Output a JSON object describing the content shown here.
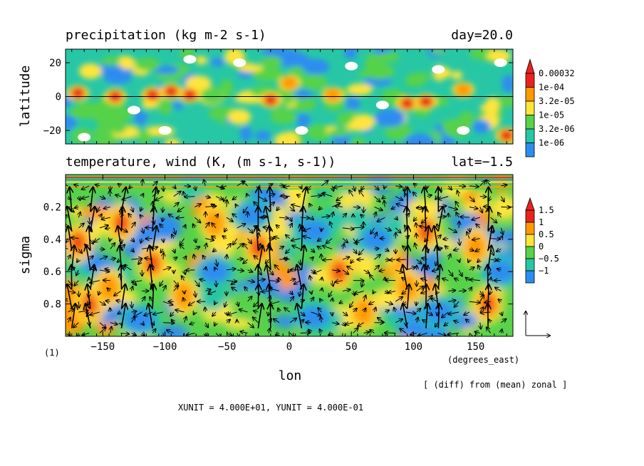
{
  "chart_data": [
    {
      "type": "heatmap",
      "title": "precipitation (kg m-2 s-1)",
      "title_right": "day=20.0",
      "xlabel": "lon",
      "ylabel": "latitude",
      "xlim": [
        -180,
        180
      ],
      "ylim": [
        -28,
        28
      ],
      "yticks": [
        20,
        0,
        -20
      ],
      "yticklabels": [
        "20",
        "0",
        "−20"
      ],
      "colorbar": {
        "labels": [
          "0.00032",
          "1e-04",
          "3.2e-05",
          "1e-05",
          "3.2e-06",
          "1e-06"
        ],
        "colors": [
          "#e8231e",
          "#ff9a00",
          "#ffe53a",
          "#57d24a",
          "#27c7a6",
          "#2d8cf0"
        ]
      },
      "blobs": [
        {
          "lon": -170,
          "lat": 2,
          "level": 5
        },
        {
          "lon": -140,
          "lat": 0,
          "level": 5
        },
        {
          "lon": -110,
          "lat": 1,
          "level": 5
        },
        {
          "lon": -95,
          "lat": 3,
          "level": 5
        },
        {
          "lon": -80,
          "lat": 1,
          "level": 5
        },
        {
          "lon": -15,
          "lat": -2,
          "level": 5
        },
        {
          "lon": 35,
          "lat": 1,
          "level": 4
        },
        {
          "lon": 95,
          "lat": -4,
          "level": 5
        },
        {
          "lon": 110,
          "lat": -3,
          "level": 5
        },
        {
          "lon": 175,
          "lat": -23,
          "level": 5
        },
        {
          "lon": -160,
          "lat": 15,
          "level": 3
        },
        {
          "lon": 0,
          "lat": 8,
          "level": 4
        },
        {
          "lon": 140,
          "lat": 4,
          "level": 4
        },
        {
          "lon": -40,
          "lat": -12,
          "level": 3
        },
        {
          "lon": 60,
          "lat": -15,
          "level": 3
        }
      ],
      "dry_patches": [
        {
          "lon": -165,
          "lat": -24
        },
        {
          "lon": -125,
          "lat": -8
        },
        {
          "lon": -80,
          "lat": 22
        },
        {
          "lon": -40,
          "lat": 20
        },
        {
          "lon": 10,
          "lat": -20
        },
        {
          "lon": 50,
          "lat": 18
        },
        {
          "lon": 120,
          "lat": 16
        },
        {
          "lon": 140,
          "lat": -20
        },
        {
          "lon": 170,
          "lat": 20
        },
        {
          "lon": -100,
          "lat": -20
        },
        {
          "lon": 75,
          "lat": -5
        }
      ]
    },
    {
      "type": "heatmap",
      "title": "temperature, wind (K, (m s-1, s-1))",
      "title_right": "lat=−1.5",
      "xlabel": "lon",
      "ylabel": "sigma",
      "x_units": "(degrees_east)",
      "xlim": [
        -180,
        180
      ],
      "ylim": [
        1.0,
        0.0
      ],
      "xticks": [
        -150,
        -100,
        -50,
        0,
        50,
        100,
        150
      ],
      "xticklabels": [
        "−150",
        "−100",
        "−50",
        "0",
        "50",
        "100",
        "150"
      ],
      "yticks": [
        0.2,
        0.4,
        0.6,
        0.8
      ],
      "yticklabels": [
        "0.2",
        "0.4",
        "0.6",
        "0.8"
      ],
      "colorbar": {
        "labels": [
          "1.5",
          "1",
          "0.5",
          "0",
          "−0.5",
          "−1"
        ],
        "colors": [
          "#e8231e",
          "#ff9a00",
          "#ffe53a",
          "#57d24a",
          "#27c7a6",
          "#2d8cf0"
        ]
      },
      "blobs": [
        {
          "lon": -170,
          "sigma": 0.42,
          "value": 1.5
        },
        {
          "lon": -160,
          "sigma": 0.8,
          "value": 1.5
        },
        {
          "lon": -135,
          "sigma": 0.3,
          "value": 1.5
        },
        {
          "lon": -145,
          "sigma": 0.7,
          "value": 1.2
        },
        {
          "lon": -110,
          "sigma": 0.55,
          "value": 1.5
        },
        {
          "lon": -85,
          "sigma": 0.75,
          "value": 1.0
        },
        {
          "lon": -25,
          "sigma": 0.45,
          "value": 1.5
        },
        {
          "lon": 40,
          "sigma": 0.6,
          "value": 1.5
        },
        {
          "lon": 60,
          "sigma": 0.85,
          "value": 1.0
        },
        {
          "lon": 110,
          "sigma": 0.35,
          "value": 1.5
        },
        {
          "lon": 95,
          "sigma": 0.7,
          "value": 1.0
        },
        {
          "lon": 160,
          "sigma": 0.8,
          "value": 1.5
        },
        {
          "lon": -60,
          "sigma": 0.3,
          "value": 0.5
        },
        {
          "lon": 150,
          "sigma": 0.45,
          "value": 0.5
        },
        {
          "lon": -30,
          "sigma": 0.25,
          "value": -1.0
        },
        {
          "lon": 20,
          "sigma": 0.35,
          "value": -1.2
        },
        {
          "lon": 70,
          "sigma": 0.4,
          "value": -1.2
        },
        {
          "lon": -120,
          "sigma": 0.9,
          "value": -1.0
        },
        {
          "lon": 20,
          "sigma": 0.88,
          "value": -1.0
        },
        {
          "lon": 120,
          "sigma": 0.85,
          "value": -0.8
        },
        {
          "lon": -60,
          "sigma": 0.6,
          "value": -0.8
        },
        {
          "lon": 170,
          "sigma": 0.6,
          "value": -0.8
        }
      ],
      "jets": [
        {
          "lon": -175
        },
        {
          "lon": -160
        },
        {
          "lon": -135
        },
        {
          "lon": -110
        },
        {
          "lon": -25
        },
        {
          "lon": -15
        },
        {
          "lon": 10
        },
        {
          "lon": 95
        },
        {
          "lon": 110
        },
        {
          "lon": 120
        },
        {
          "lon": 160
        }
      ]
    }
  ],
  "footer": {
    "unit_note": "XUNIT = 4.000E+01, YUNIT = 4.000E-01",
    "frame_id": "(1)",
    "diff_note": "[ (diff) from (mean) zonal ]"
  }
}
